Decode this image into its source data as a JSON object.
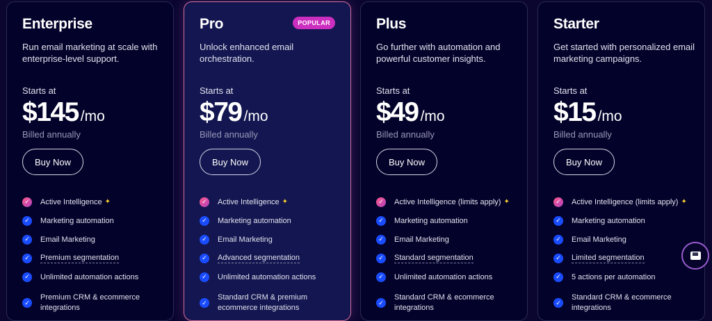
{
  "plans": [
    {
      "name": "Enterprise",
      "desc": "Run email marketing at scale with enterprise-level support.",
      "starts": "Starts at",
      "price": "$145",
      "per": "/mo",
      "billed": "Billed annually",
      "buy": "Buy Now",
      "features": [
        "Active Intelligence",
        "Marketing automation",
        "Email Marketing",
        "Premium segmentation",
        "Unlimited automation actions",
        "Premium CRM & ecommerce integrations"
      ]
    },
    {
      "name": "Pro",
      "badge": "POPULAR",
      "desc": "Unlock enhanced email orchestration.",
      "starts": "Starts at",
      "price": "$79",
      "per": "/mo",
      "billed": "Billed annually",
      "buy": "Buy Now",
      "features": [
        "Active Intelligence",
        "Marketing automation",
        "Email Marketing",
        "Advanced segmentation",
        "Unlimited automation actions",
        "Standard CRM & premium ecommerce integrations"
      ]
    },
    {
      "name": "Plus",
      "desc": "Go further with automation and powerful customer insights.",
      "starts": "Starts at",
      "price": "$49",
      "per": "/mo",
      "billed": "Billed annually",
      "buy": "Buy Now",
      "features": [
        "Active Intelligence (limits apply)",
        "Marketing automation",
        "Email Marketing",
        "Standard segmentation",
        "Unlimited automation actions",
        "Standard CRM & ecommerce integrations"
      ]
    },
    {
      "name": "Starter",
      "desc": "Get started with personalized email marketing campaigns.",
      "starts": "Starts at",
      "price": "$15",
      "per": "/mo",
      "billed": "Billed annually",
      "buy": "Buy Now",
      "features": [
        "Active Intelligence (limits apply)",
        "Marketing automation",
        "Email Marketing",
        "Limited segmentation",
        "5 actions per automation",
        "Standard CRM & ecommerce integrations"
      ]
    }
  ],
  "icons": {
    "check": "check-circle-icon",
    "sparkle": "sparkle-icon",
    "chat": "chat-icon"
  },
  "colors": {
    "background": "#0a0630",
    "badge": "#cc2fbf",
    "check": "#1a4cff"
  }
}
